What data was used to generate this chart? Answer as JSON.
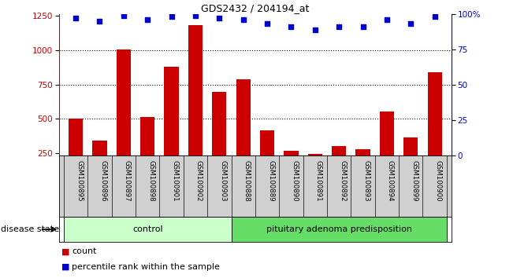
{
  "title": "GDS2432 / 204194_at",
  "samples": [
    "GSM100895",
    "GSM100896",
    "GSM100897",
    "GSM100898",
    "GSM100901",
    "GSM100902",
    "GSM100903",
    "GSM100888",
    "GSM100889",
    "GSM100890",
    "GSM100891",
    "GSM100892",
    "GSM100893",
    "GSM100894",
    "GSM100899",
    "GSM100900"
  ],
  "counts": [
    500,
    340,
    1005,
    510,
    880,
    1185,
    695,
    790,
    415,
    265,
    240,
    300,
    275,
    555,
    365,
    840
  ],
  "percentiles": [
    97,
    95,
    99,
    96,
    98,
    99,
    97,
    96,
    93,
    91,
    89,
    91,
    91,
    96,
    93,
    98
  ],
  "groups": [
    {
      "label": "control",
      "start": 0,
      "end": 7
    },
    {
      "label": "pituitary adenoma predisposition",
      "start": 7,
      "end": 16
    }
  ],
  "group_colors": [
    "#ccffcc",
    "#66dd66"
  ],
  "bar_color": "#cc0000",
  "dot_color": "#0000cc",
  "ylim_left": [
    230,
    1265
  ],
  "ylim_right": [
    0,
    100
  ],
  "yticks_left": [
    250,
    500,
    750,
    1000,
    1250
  ],
  "yticks_right": [
    0,
    25,
    50,
    75,
    100
  ],
  "ytick_labels_right": [
    "0",
    "25",
    "50",
    "75",
    "100%"
  ],
  "grid_values": [
    500,
    750,
    1000
  ],
  "bg_color": "#ffffff",
  "tick_label_area_color": "#d0d0d0",
  "legend_items": [
    "count",
    "percentile rank within the sample"
  ],
  "disease_state_label": "disease state"
}
